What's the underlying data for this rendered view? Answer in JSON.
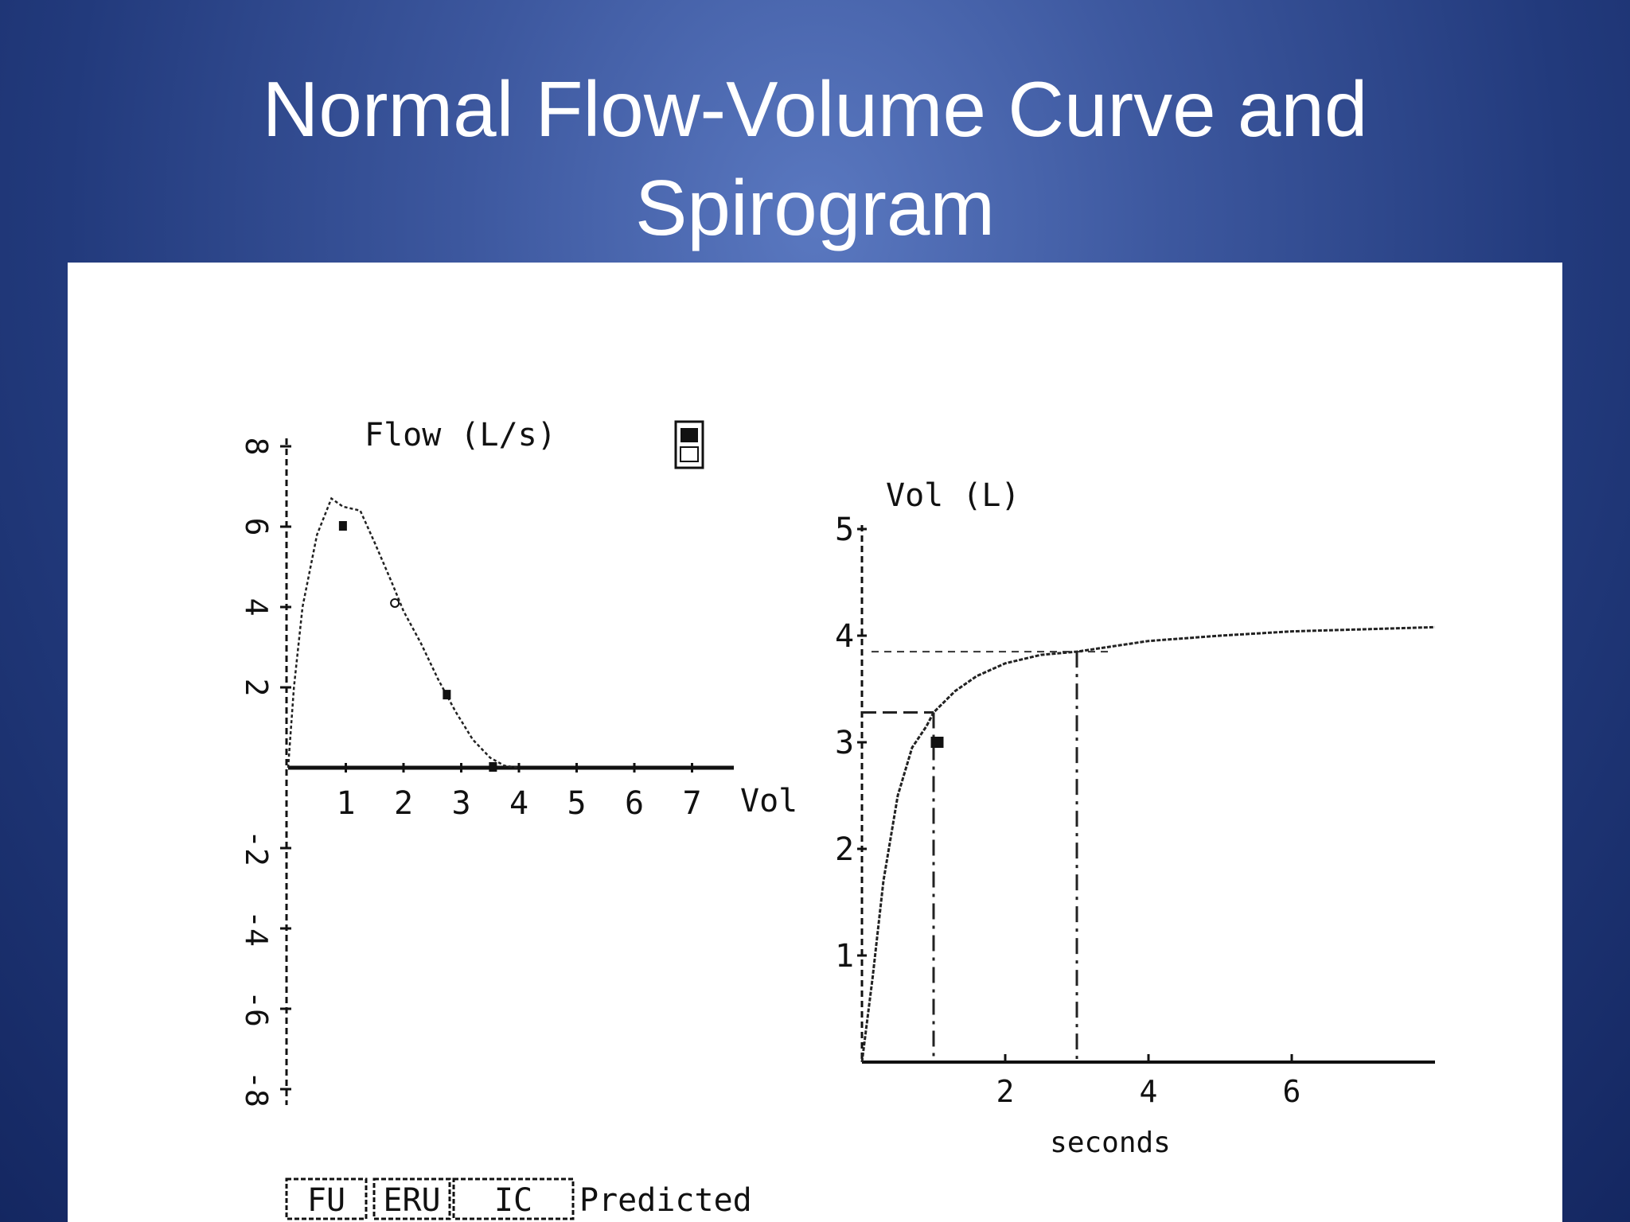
{
  "slide": {
    "title_line1": "Normal Flow-Volume Curve and",
    "title_line2": "Spirogram"
  },
  "chart_data": [
    {
      "type": "line",
      "ylabel": "Flow (L/s)",
      "xlabel": "Vol",
      "x_ticks": [
        "1",
        "2",
        "3",
        "4",
        "5",
        "6",
        "7"
      ],
      "y_ticks": [
        "8",
        "6",
        "4",
        "2",
        "-2",
        "-4",
        "-6",
        "-8"
      ],
      "xlim": [
        0,
        8
      ],
      "ylim": [
        -8,
        8
      ],
      "series": [
        {
          "x": [
            0,
            0.1,
            0.25,
            0.5,
            0.75,
            0.95,
            1.25,
            1.5,
            1.8,
            2.0,
            2.3,
            2.6,
            2.9,
            3.2,
            3.5,
            3.75,
            4.0
          ],
          "y": [
            0,
            2.0,
            4.0,
            5.8,
            6.7,
            6.5,
            6.4,
            5.6,
            4.6,
            3.9,
            3.1,
            2.2,
            1.4,
            0.7,
            0.25,
            0.05,
            0
          ]
        }
      ],
      "predicted_markers": [
        {
          "x": 0.95,
          "y": 6.0
        },
        {
          "x": 1.85,
          "y": 4.1
        },
        {
          "x": 2.75,
          "y": 1.8
        },
        {
          "x": 3.55,
          "y": 0
        }
      ],
      "legend": [
        "FU",
        "ERU",
        "IC",
        "Predicted"
      ]
    },
    {
      "type": "line",
      "ylabel": "Vol (L)",
      "xlabel": "seconds",
      "x_ticks": [
        "2",
        "4",
        "6"
      ],
      "y_ticks": [
        "5",
        "4",
        "3",
        "2",
        "1"
      ],
      "xlim": [
        0,
        8
      ],
      "ylim": [
        0,
        5
      ],
      "series": [
        {
          "x": [
            0,
            0.15,
            0.3,
            0.5,
            0.7,
            0.9,
            1.0,
            1.3,
            1.6,
            2.0,
            2.5,
            3.0,
            3.5,
            4.0,
            5.0,
            6.0,
            7.0,
            8.0
          ],
          "y": [
            0,
            0.8,
            1.7,
            2.5,
            2.95,
            3.15,
            3.28,
            3.48,
            3.62,
            3.74,
            3.82,
            3.85,
            3.9,
            3.95,
            4.0,
            4.04,
            4.06,
            4.08
          ]
        }
      ],
      "marker": {
        "x": 1.05,
        "y": 3.0
      },
      "fev1": {
        "x": 1,
        "y": 3.28
      },
      "fvc_reference": {
        "x": 3,
        "y": 3.85
      }
    }
  ]
}
